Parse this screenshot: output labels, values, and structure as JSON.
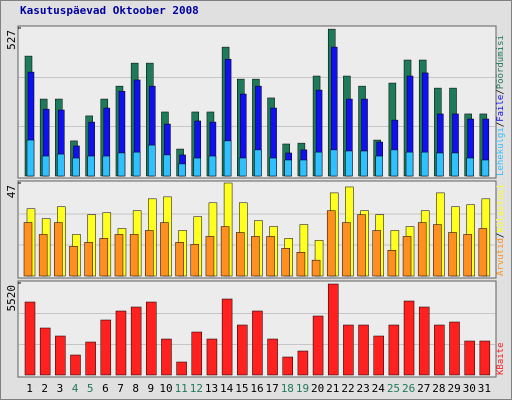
{
  "title": "Kasutuspäevad Oktoober 2008",
  "separator": "/",
  "chart_data": [
    {
      "type": "bar",
      "ylim": [
        0,
        527
      ],
      "yticks": [
        527
      ],
      "series": [
        {
          "name": "Pöördumisi",
          "color": "#1f7a5a",
          "values": [
            427,
            274,
            274,
            125,
            214,
            274,
            320,
            402,
            402,
            228,
            96,
            228,
            228,
            459,
            345,
            345,
            278,
            114,
            117,
            356,
            523,
            356,
            320,
            128,
            331,
            413,
            413,
            313,
            313,
            221,
            221
          ]
        },
        {
          "name": "Faile",
          "color": "#1010f0",
          "values": [
            370,
            238,
            235,
            107,
            192,
            242,
            302,
            342,
            320,
            185,
            75,
            196,
            192,
            416,
            292,
            320,
            242,
            82,
            93,
            306,
            459,
            274,
            274,
            121,
            199,
            356,
            367,
            221,
            221,
            203,
            203
          ]
        },
        {
          "name": "Lehekülgi",
          "color": "#30c0ff",
          "values": [
            128,
            71,
            78,
            64,
            71,
            71,
            82,
            85,
            110,
            75,
            43,
            64,
            71,
            125,
            64,
            93,
            64,
            57,
            57,
            85,
            93,
            89,
            89,
            71,
            93,
            85,
            85,
            82,
            82,
            64,
            57
          ]
        }
      ]
    },
    {
      "type": "bar",
      "ylim": [
        0,
        47
      ],
      "yticks": [
        47
      ],
      "series": [
        {
          "name": "Külastusi",
          "color": "#ffff20",
          "values": [
            34,
            29,
            35,
            21,
            31,
            32,
            24,
            33,
            39,
            40,
            23,
            30,
            37,
            47,
            37,
            28,
            25,
            19,
            26,
            18,
            42,
            45,
            33,
            31,
            23,
            25,
            33,
            42,
            35,
            36,
            39
          ]
        },
        {
          "name": "Arvutid",
          "color": "#ff9020",
          "values": [
            27,
            21,
            27,
            15,
            17,
            19,
            21,
            21,
            23,
            27,
            17,
            16,
            20,
            25,
            22,
            20,
            20,
            14,
            12,
            8,
            33,
            27,
            31,
            23,
            13,
            20,
            27,
            26,
            22,
            21,
            24
          ]
        }
      ]
    },
    {
      "type": "bar",
      "ylim": [
        0,
        5520
      ],
      "yticks": [
        5520
      ],
      "categories": [
        "1",
        "2",
        "3",
        "4",
        "5",
        "6",
        "7",
        "8",
        "9",
        "10",
        "11",
        "12",
        "13",
        "14",
        "15",
        "16",
        "17",
        "18",
        "19",
        "20",
        "21",
        "22",
        "23",
        "24",
        "25",
        "26",
        "27",
        "28",
        "29",
        "30",
        "31"
      ],
      "label_colors": [
        "#000",
        "#000",
        "#000",
        "#1f7a5a",
        "#1f7a5a",
        "#000",
        "#000",
        "#000",
        "#000",
        "#000",
        "#1f7a5a",
        "#1f7a5a",
        "#000",
        "#000",
        "#000",
        "#000",
        "#000",
        "#1f7a5a",
        "#1f7a5a",
        "#000",
        "#000",
        "#000",
        "#000",
        "#000",
        "#1f7a5a",
        "#1f7a5a",
        "#000",
        "#000",
        "#000",
        "#000",
        "#000"
      ],
      "series": [
        {
          "name": "KBaite",
          "color": "#ff2020",
          "values": [
            4380,
            2820,
            2340,
            1200,
            1980,
            3300,
            3840,
            4080,
            4380,
            2160,
            780,
            2580,
            2160,
            4560,
            3000,
            3840,
            2160,
            1080,
            1440,
            3540,
            5460,
            3000,
            3000,
            2340,
            3000,
            4440,
            4080,
            3000,
            3180,
            2040,
            2040
          ]
        }
      ]
    }
  ]
}
